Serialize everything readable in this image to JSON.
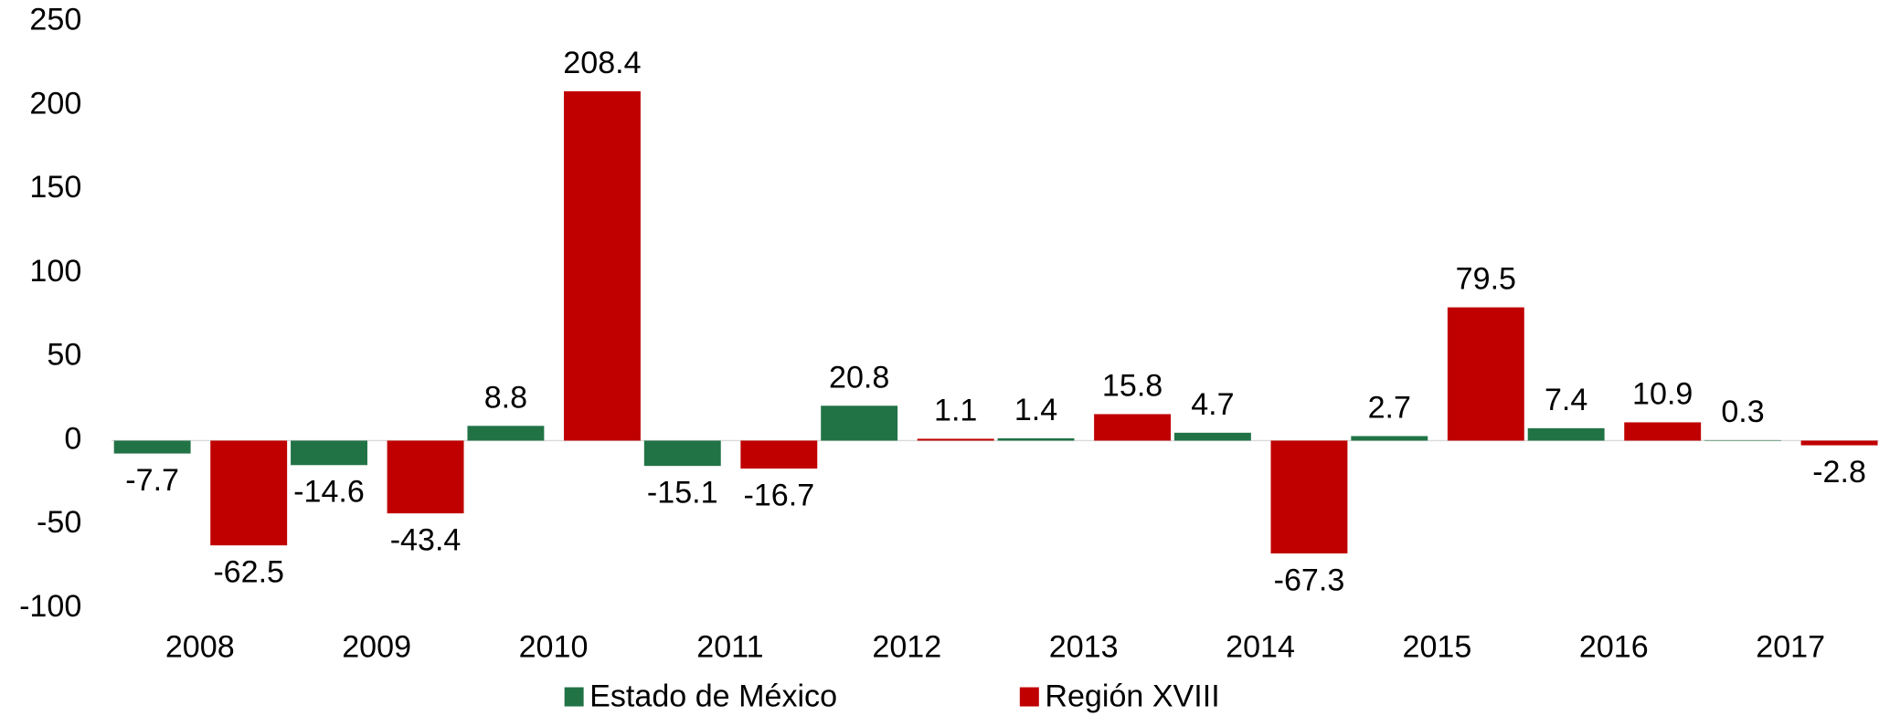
{
  "chart_data": {
    "type": "bar",
    "categories": [
      "2008",
      "2009",
      "2010",
      "2011",
      "2012",
      "2013",
      "2014",
      "2015",
      "2016",
      "2017"
    ],
    "series": [
      {
        "name": "Estado de México",
        "color": "#217346",
        "values": [
          -7.7,
          -14.6,
          8.8,
          -15.1,
          20.8,
          1.4,
          4.7,
          2.7,
          7.4,
          0.3
        ]
      },
      {
        "name": "Región XVIII",
        "color": "#c00000",
        "values": [
          -62.5,
          -43.4,
          208.4,
          -16.7,
          1.1,
          15.8,
          -67.3,
          79.5,
          10.9,
          -2.8
        ]
      }
    ],
    "ylim": [
      -100,
      250
    ],
    "yticks": [
      -100,
      -50,
      0,
      50,
      100,
      150,
      200,
      250
    ],
    "grid": false,
    "legend": "bottom"
  }
}
